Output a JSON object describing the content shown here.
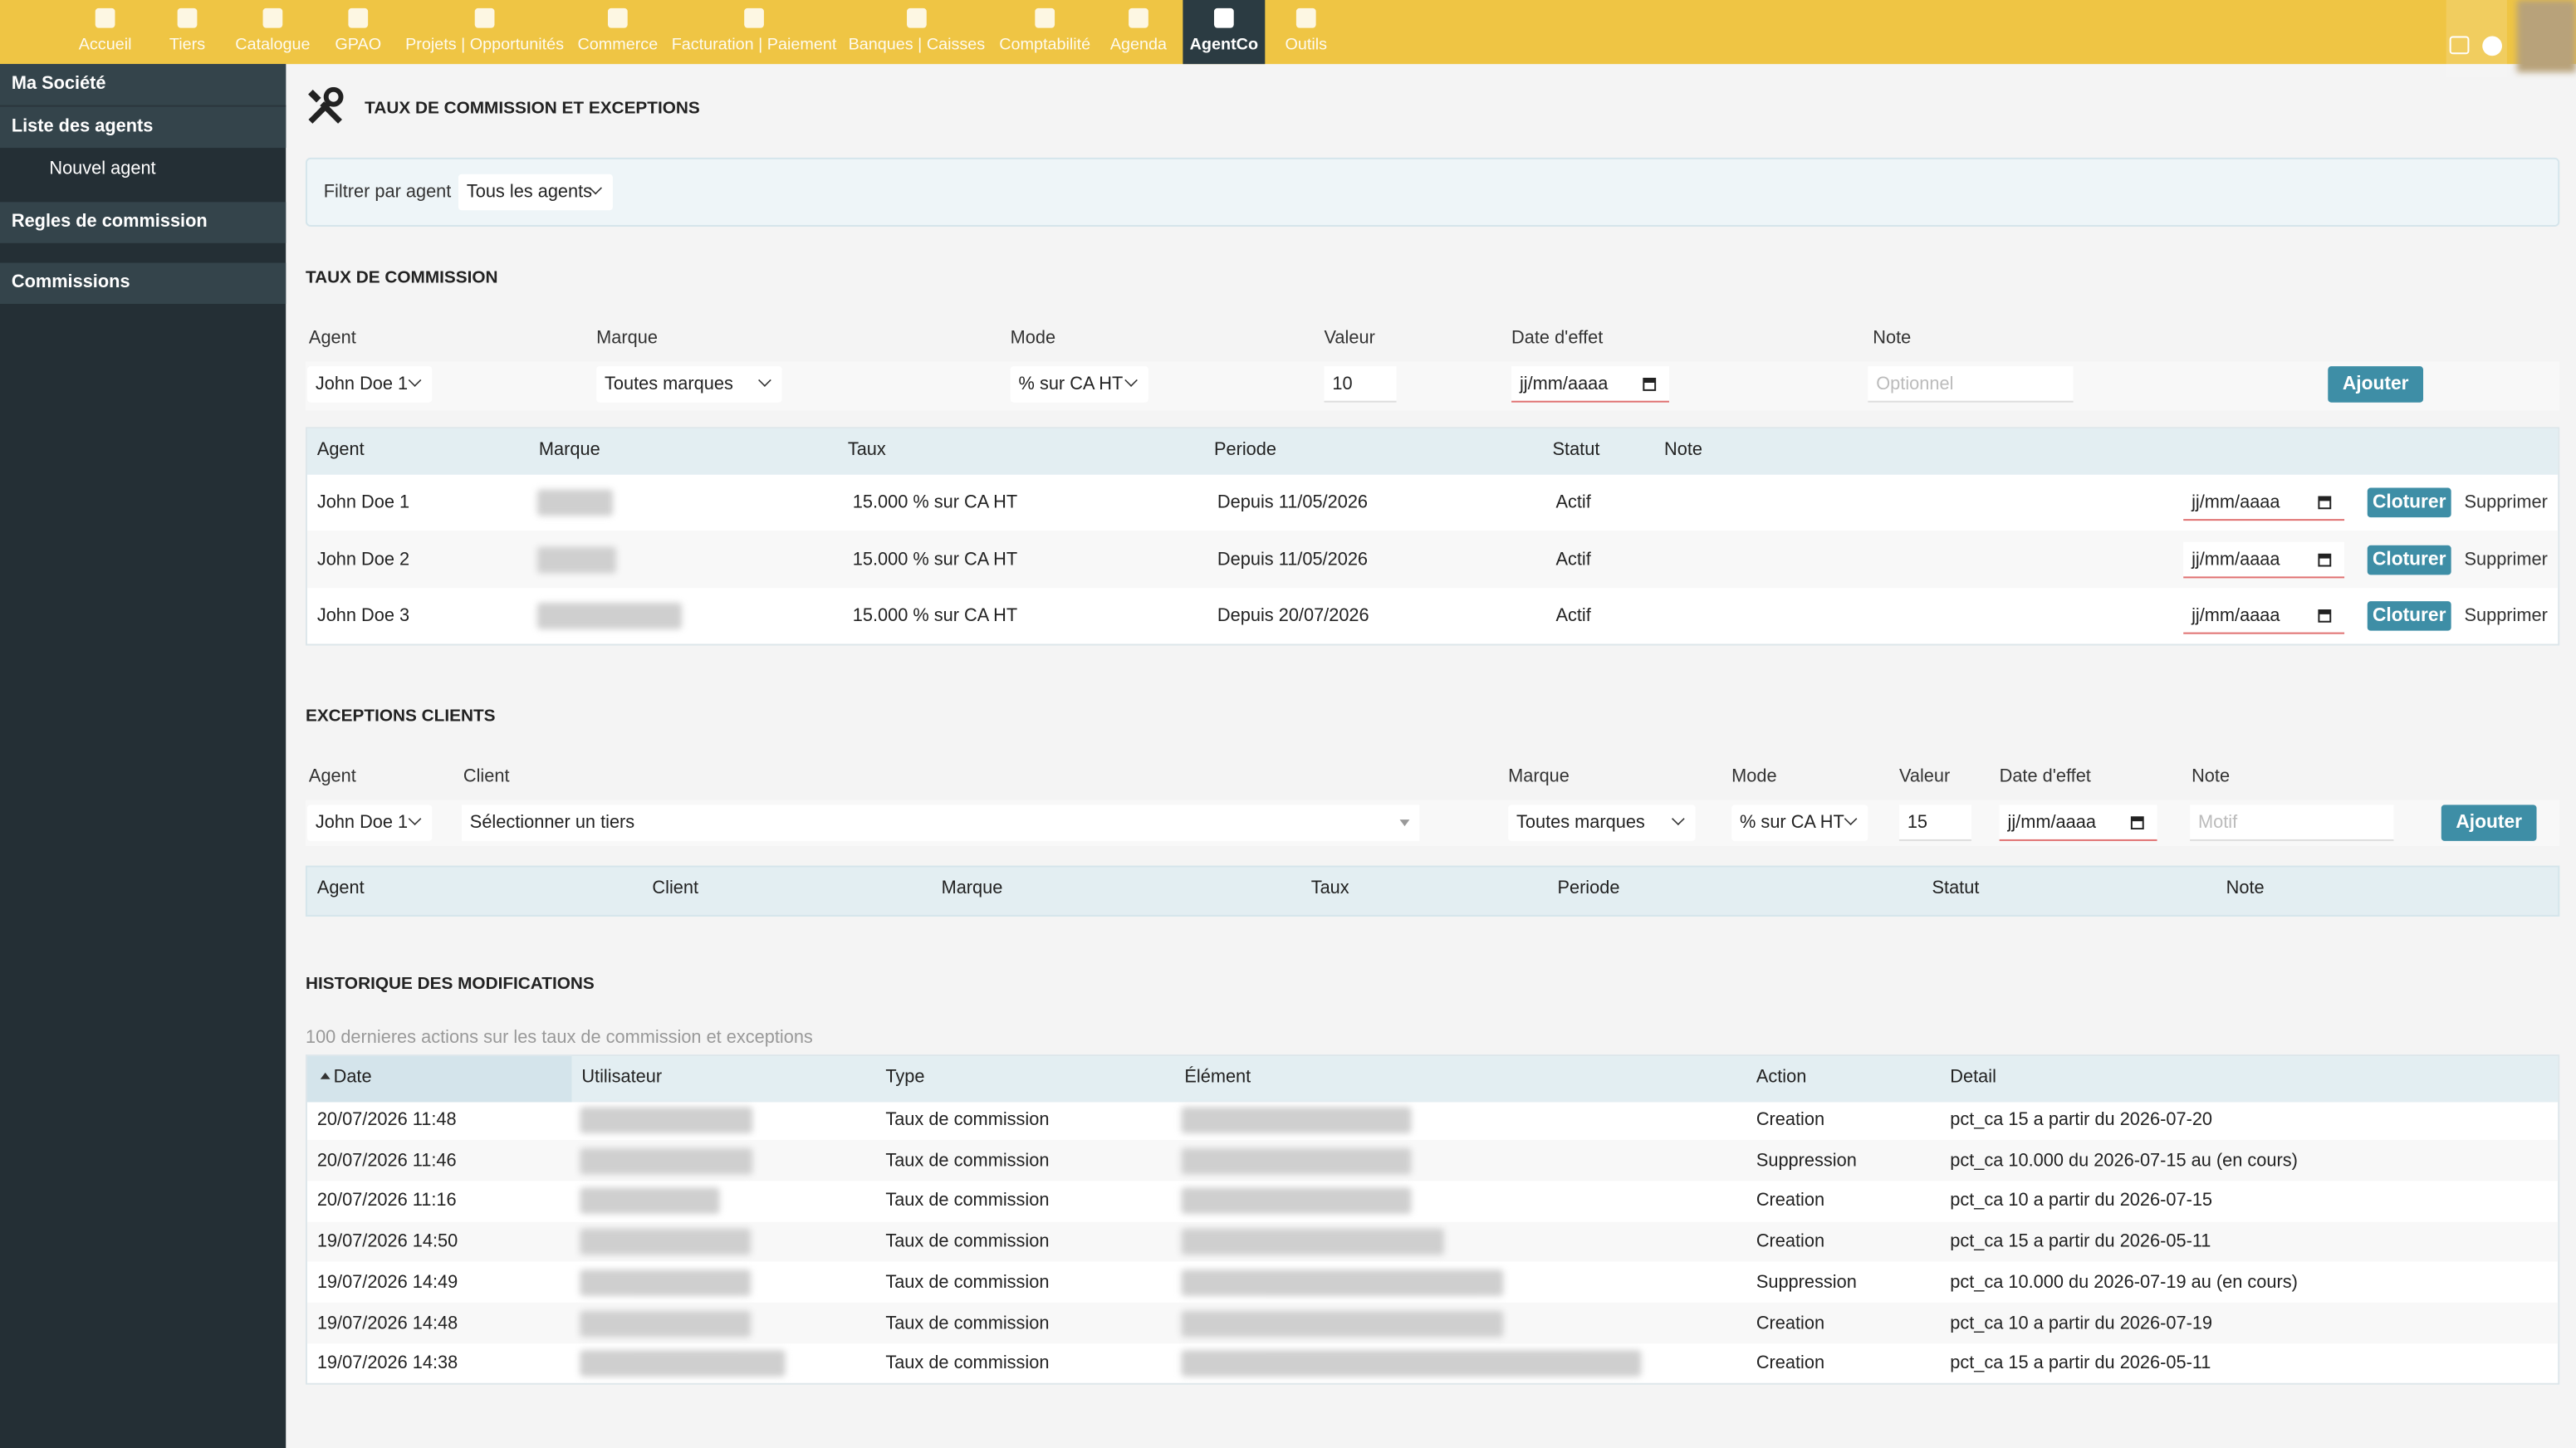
{
  "nav": {
    "items": [
      "Accueil",
      "Tiers",
      "Catalogue",
      "GPAO",
      "Projets | Opportunités",
      "Commerce",
      "Facturation | Paiement",
      "Banques | Caisses",
      "Comptabilité",
      "Agenda",
      "AgentCo",
      "Outils"
    ],
    "active": 10
  },
  "sidebar": {
    "company": "Ma Société",
    "items": [
      "Liste des agents",
      "Nouvel agent",
      "Regles de commission",
      "Commissions"
    ]
  },
  "page": {
    "title": "TAUX DE COMMISSION ET EXCEPTIONS",
    "filter_label": "Filtrer par agent",
    "filter_value": "Tous les agents"
  },
  "rates": {
    "title": "TAUX DE COMMISSION",
    "form_labels": [
      "Agent",
      "Marque",
      "Mode",
      "Valeur",
      "Date d'effet",
      "Note"
    ],
    "form_values": {
      "agent": "John Doe 1",
      "marque": "Toutes marques",
      "mode": "% sur CA HT",
      "valeur": "10",
      "date": "jj/mm/aaaa",
      "note": "Optionnel",
      "button": "Ajouter"
    },
    "headers": [
      "Agent",
      "Marque",
      "Taux",
      "Periode",
      "Statut",
      "Note"
    ],
    "rows": [
      [
        "John Doe 1",
        "15.000 % sur CA HT",
        "Depuis 11/05/2026",
        "Actif",
        "jj/mm/aaaa",
        "Cloturer",
        "Supprimer"
      ],
      [
        "John Doe 2",
        "15.000 % sur CA HT",
        "Depuis 11/05/2026",
        "Actif",
        "jj/mm/aaaa",
        "Cloturer",
        "Supprimer"
      ],
      [
        "John Doe 3",
        "15.000 % sur CA HT",
        "Depuis 20/07/2026",
        "Actif",
        "jj/mm/aaaa",
        "Cloturer",
        "Supprimer"
      ]
    ]
  },
  "exceptions": {
    "title": "EXCEPTIONS CLIENTS",
    "form_labels": [
      "Agent",
      "Client",
      "Marque",
      "Mode",
      "Valeur",
      "Date d'effet",
      "Note"
    ],
    "form_values": [
      "John Doe 1",
      "Sélectionner un tiers",
      "Toutes marques",
      "% sur CA HT",
      "15",
      "jj/mm/aaaa",
      "Motif"
    ],
    "button": "Ajouter",
    "headers": [
      "Agent",
      "Client",
      "Marque",
      "Taux",
      "Periode",
      "Statut",
      "Note"
    ]
  },
  "history": {
    "title": "HISTORIQUE DES MODIFICATIONS",
    "subtitle": "100 dernieres actions sur les taux de commission et exceptions",
    "headers": [
      "Date",
      "Utilisateur",
      "Type",
      "Élément",
      "Action",
      "Detail"
    ],
    "rows": [
      [
        "20/07/2026 11:48",
        "Taux de commission",
        "Creation",
        "pct_ca 15 a partir du 2026-07-20"
      ],
      [
        "20/07/2026 11:46",
        "Taux de commission",
        "Suppression",
        "pct_ca 10.000 du 2026-07-15 au (en cours)"
      ],
      [
        "20/07/2026 11:16",
        "Taux de commission",
        "Creation",
        "pct_ca 10 a partir du 2026-07-15"
      ],
      [
        "19/07/2026 14:50",
        "Taux de commission",
        "Creation",
        "pct_ca 15 a partir du 2026-05-11"
      ],
      [
        "19/07/2026 14:49",
        "Taux de commission",
        "Suppression",
        "pct_ca 10.000 du 2026-07-19 au (en cours)"
      ],
      [
        "19/07/2026 14:48",
        "Taux de commission",
        "Creation",
        "pct_ca 10 a partir du 2026-07-19"
      ],
      [
        "19/07/2026 14:38",
        "Taux de commission",
        "Creation",
        "pct_ca 15 a partir du 2026-05-11"
      ]
    ]
  }
}
